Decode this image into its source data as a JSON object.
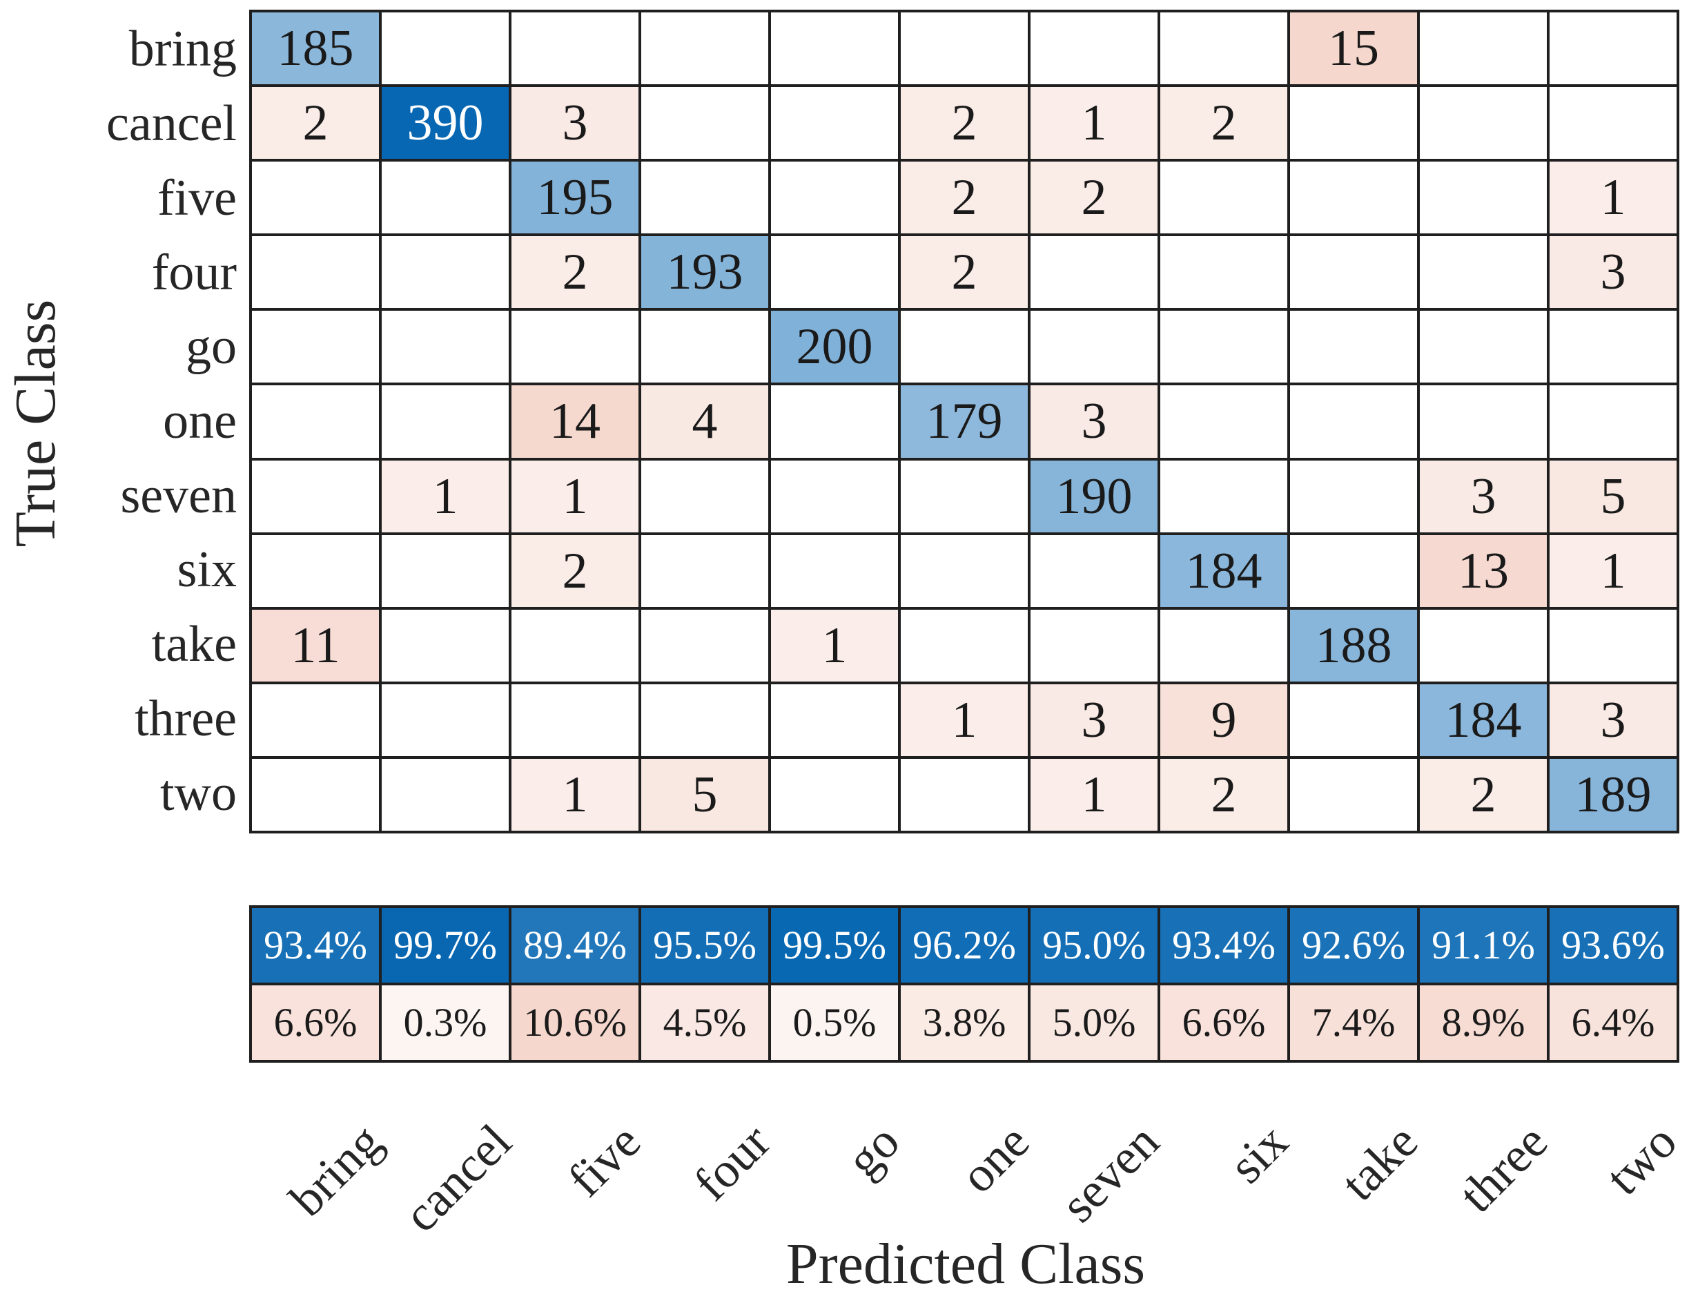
{
  "figure": {
    "x_axis_label": "Predicted Class",
    "y_axis_label": "True Class"
  },
  "chart_data": {
    "type": "heatmap",
    "subtype": "confusion-matrix",
    "title": "",
    "x_axis_label": "Predicted Class",
    "y_axis_label": "True Class",
    "classes": [
      "bring",
      "cancel",
      "five",
      "four",
      "go",
      "one",
      "seven",
      "six",
      "take",
      "three",
      "two"
    ],
    "matrix_rows_are_true_class": true,
    "matrix": [
      [
        185,
        0,
        0,
        0,
        0,
        0,
        0,
        0,
        15,
        0,
        0
      ],
      [
        2,
        390,
        3,
        0,
        0,
        2,
        1,
        2,
        0,
        0,
        0
      ],
      [
        0,
        0,
        195,
        0,
        0,
        2,
        2,
        0,
        0,
        0,
        1
      ],
      [
        0,
        0,
        2,
        193,
        0,
        2,
        0,
        0,
        0,
        0,
        3
      ],
      [
        0,
        0,
        0,
        0,
        200,
        0,
        0,
        0,
        0,
        0,
        0
      ],
      [
        0,
        0,
        14,
        4,
        0,
        179,
        3,
        0,
        0,
        0,
        0
      ],
      [
        0,
        1,
        1,
        0,
        0,
        0,
        190,
        0,
        0,
        3,
        5
      ],
      [
        0,
        0,
        2,
        0,
        0,
        0,
        0,
        184,
        0,
        13,
        1
      ],
      [
        11,
        0,
        0,
        0,
        1,
        0,
        0,
        0,
        188,
        0,
        0
      ],
      [
        0,
        0,
        0,
        0,
        0,
        1,
        3,
        9,
        0,
        184,
        3
      ],
      [
        0,
        0,
        1,
        5,
        0,
        0,
        1,
        2,
        0,
        2,
        189
      ]
    ],
    "zero_cells_rendered_blank": true,
    "column_summary": {
      "correct_pct": [
        93.4,
        99.7,
        89.4,
        95.5,
        99.5,
        96.2,
        95.0,
        93.4,
        92.6,
        91.1,
        93.6
      ],
      "incorrect_pct": [
        6.6,
        0.3,
        10.6,
        4.5,
        0.5,
        3.8,
        5.0,
        6.6,
        7.4,
        8.9,
        6.4
      ],
      "percent_suffix": "%"
    },
    "normalization": {
      "diagonal_max": 390,
      "off_diagonal_max": 15
    },
    "layout": {
      "grid_on": true,
      "legend": "none"
    },
    "colors": {
      "diagonal_end": "#0867b2",
      "off_diagonal_end": "#d75f37",
      "grid_line": "#1f1f1f",
      "text": "#1a1a1a",
      "text_on_dark": "#ffffff",
      "background": "#ffffff"
    }
  }
}
